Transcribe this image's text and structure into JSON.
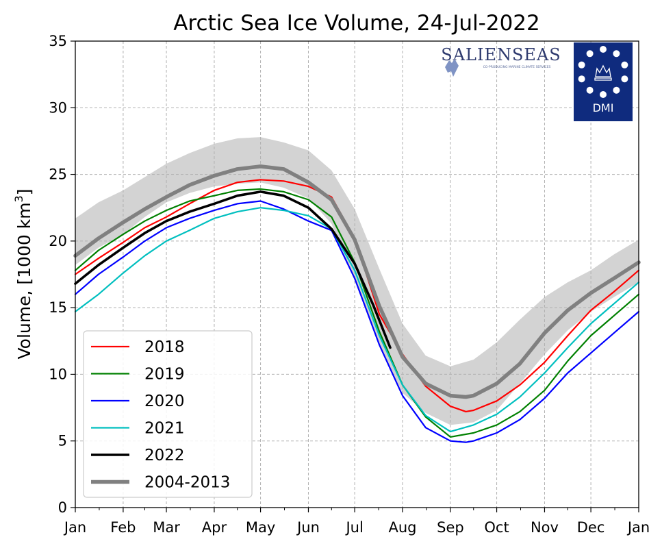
{
  "chart_data": {
    "type": "line",
    "title": "Arctic Sea Ice Volume, 24-Jul-2022",
    "ylabel_main": "Volume, [1000 km",
    "ylabel_sup": "3",
    "ylabel_end": "]",
    "xlabel": "",
    "xlim": [
      1,
      366
    ],
    "ylim": [
      0,
      35
    ],
    "grid": true,
    "legend_position": "bottom-left",
    "x_ticks": [
      {
        "day": 1,
        "label": "Jan"
      },
      {
        "day": 32,
        "label": "Feb"
      },
      {
        "day": 60,
        "label": "Mar"
      },
      {
        "day": 91,
        "label": "Apr"
      },
      {
        "day": 121,
        "label": "May"
      },
      {
        "day": 152,
        "label": "Jun"
      },
      {
        "day": 182,
        "label": "Jul"
      },
      {
        "day": 213,
        "label": "Aug"
      },
      {
        "day": 244,
        "label": "Sep"
      },
      {
        "day": 274,
        "label": "Oct"
      },
      {
        "day": 305,
        "label": "Nov"
      },
      {
        "day": 335,
        "label": "Dec"
      },
      {
        "day": 366,
        "label": "Jan"
      }
    ],
    "y_ticks": [
      0,
      5,
      10,
      15,
      20,
      25,
      30,
      35
    ],
    "band": {
      "name": "2004-2013 range",
      "color": "#d3d3d3",
      "x": [
        1,
        16,
        32,
        46,
        60,
        75,
        91,
        106,
        121,
        136,
        152,
        167,
        182,
        198,
        213,
        228,
        244,
        259,
        274,
        289,
        305,
        320,
        335,
        350,
        366
      ],
      "upper": [
        21.7,
        22.9,
        23.8,
        24.8,
        25.8,
        26.6,
        27.3,
        27.7,
        27.8,
        27.4,
        26.8,
        25.3,
        22.4,
        17.9,
        13.8,
        11.4,
        10.6,
        11.1,
        12.4,
        14.1,
        15.8,
        16.9,
        17.8,
        19.0,
        20.1
      ],
      "lower": [
        18.2,
        19.5,
        20.5,
        21.8,
        22.9,
        23.6,
        24.1,
        24.3,
        24.4,
        24.0,
        23.2,
        21.3,
        17.0,
        12.2,
        8.6,
        7.1,
        6.2,
        6.4,
        7.3,
        9.3,
        11.5,
        13.3,
        14.7,
        15.8,
        16.9
      ]
    },
    "series": [
      {
        "name": "2018",
        "color": "#ff0000",
        "width": 2.2,
        "x": [
          1,
          16,
          32,
          46,
          60,
          75,
          91,
          106,
          121,
          136,
          152,
          167,
          182,
          198,
          213,
          228,
          244,
          254,
          259,
          274,
          289,
          305,
          320,
          335,
          350,
          366
        ],
        "y": [
          17.5,
          18.7,
          19.9,
          21.0,
          21.8,
          22.8,
          23.8,
          24.4,
          24.6,
          24.5,
          24.1,
          23.3,
          20.2,
          14.5,
          11.5,
          9.1,
          7.6,
          7.2,
          7.3,
          8.0,
          9.2,
          10.9,
          12.9,
          14.8,
          16.2,
          17.8
        ]
      },
      {
        "name": "2019",
        "color": "#008000",
        "width": 2.2,
        "x": [
          1,
          16,
          32,
          46,
          60,
          75,
          91,
          106,
          121,
          136,
          152,
          167,
          182,
          198,
          213,
          228,
          244,
          259,
          274,
          289,
          305,
          320,
          335,
          350,
          366
        ],
        "y": [
          17.8,
          19.3,
          20.5,
          21.5,
          22.3,
          23.0,
          23.4,
          23.8,
          23.9,
          23.7,
          23.1,
          21.8,
          18.4,
          13.2,
          9.2,
          6.8,
          5.3,
          5.6,
          6.2,
          7.2,
          8.8,
          11.0,
          12.9,
          14.4,
          16.0
        ]
      },
      {
        "name": "2020",
        "color": "#0000ff",
        "width": 2.2,
        "x": [
          1,
          16,
          32,
          46,
          60,
          75,
          91,
          106,
          121,
          136,
          152,
          167,
          182,
          198,
          213,
          228,
          244,
          254,
          259,
          274,
          289,
          305,
          320,
          335,
          350,
          366
        ],
        "y": [
          16.0,
          17.5,
          18.8,
          20.0,
          21.0,
          21.7,
          22.3,
          22.8,
          23.0,
          22.4,
          21.5,
          20.8,
          17.2,
          12.2,
          8.4,
          6.0,
          5.0,
          4.9,
          5.0,
          5.6,
          6.6,
          8.2,
          10.1,
          11.6,
          13.1,
          14.7
        ]
      },
      {
        "name": "2021",
        "color": "#00bfbf",
        "width": 2.2,
        "x": [
          1,
          16,
          32,
          46,
          60,
          75,
          91,
          106,
          121,
          136,
          152,
          167,
          182,
          198,
          213,
          228,
          244,
          259,
          274,
          289,
          305,
          320,
          335,
          350,
          366
        ],
        "y": [
          14.7,
          16.0,
          17.6,
          18.9,
          20.0,
          20.8,
          21.7,
          22.2,
          22.5,
          22.3,
          21.9,
          20.9,
          17.8,
          12.9,
          9.2,
          6.9,
          5.7,
          6.2,
          7.0,
          8.3,
          10.1,
          12.0,
          13.8,
          15.3,
          16.9
        ]
      },
      {
        "name": "2022",
        "color": "#000000",
        "width": 3.6,
        "x": [
          1,
          16,
          32,
          46,
          60,
          75,
          91,
          106,
          121,
          136,
          152,
          167,
          182,
          194,
          205
        ],
        "y": [
          16.8,
          18.2,
          19.5,
          20.6,
          21.5,
          22.2,
          22.8,
          23.4,
          23.7,
          23.4,
          22.5,
          20.9,
          18.3,
          15.2,
          12.0
        ]
      },
      {
        "name": "2004-2013",
        "color": "#808080",
        "width": 5.5,
        "x": [
          1,
          16,
          32,
          46,
          60,
          75,
          91,
          106,
          121,
          136,
          152,
          167,
          182,
          198,
          213,
          228,
          244,
          254,
          259,
          274,
          289,
          305,
          320,
          335,
          350,
          366
        ],
        "y": [
          18.9,
          20.2,
          21.4,
          22.4,
          23.3,
          24.2,
          24.9,
          25.4,
          25.6,
          25.4,
          24.4,
          23.1,
          20.1,
          15.1,
          11.3,
          9.3,
          8.4,
          8.3,
          8.4,
          9.3,
          10.8,
          13.1,
          14.8,
          16.1,
          17.2,
          18.4
        ]
      }
    ],
    "legend": [
      "2018",
      "2019",
      "2020",
      "2021",
      "2022",
      "2004-2013"
    ]
  },
  "logos": {
    "salienseas_text": "SALIENSEAS",
    "salienseas_tagline": "CO-PRODUCING MARINE CLIMATE SERVICES",
    "salienseas_color": "#2e3a6e",
    "dmi_text": "DMI",
    "dmi_color": "#0f2b7e"
  }
}
